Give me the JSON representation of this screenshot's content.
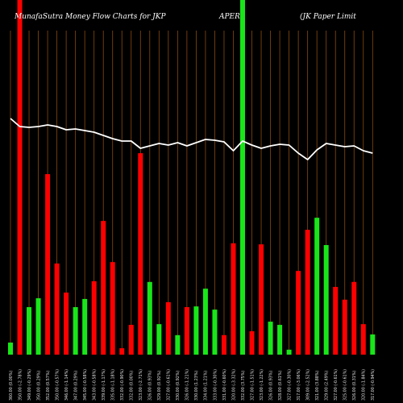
{
  "chart_data": {
    "type": "bar",
    "title_parts": [
      "MunafaSutra  Money Flow  Charts for JKP",
      "APER",
      "(JK Paper Limit"
    ],
    "ylim": [
      0,
      100
    ],
    "money_flow": {
      "values": [
        3.4,
        100,
        13.4,
        15.9,
        50.9,
        25.7,
        17.5,
        13.4,
        15.7,
        20.7,
        37.7,
        26.1,
        1.8,
        8.4,
        56.8,
        20.5,
        8.6,
        14.8,
        5.5,
        13.4,
        13.6,
        18.6,
        12.7,
        5.5,
        31.4,
        100,
        6.6,
        31.1,
        9.3,
        8.4,
        1.4,
        23.6,
        35.2,
        38.6,
        30.9,
        19.1,
        15.5,
        20.5,
        8.6,
        5.7
      ],
      "direction": [
        "up",
        "down",
        "up",
        "up",
        "down",
        "down",
        "down",
        "up",
        "up",
        "down",
        "down",
        "down",
        "down",
        "down",
        "down",
        "up",
        "up",
        "down",
        "up",
        "down",
        "up",
        "up",
        "up",
        "down",
        "down",
        "up",
        "down",
        "down",
        "up",
        "up",
        "up",
        "down",
        "down",
        "up",
        "up",
        "down",
        "down",
        "down",
        "down",
        "up"
      ]
    },
    "price_line": {
      "values": [
        360,
        350,
        349,
        350,
        352,
        350,
        346,
        347,
        345,
        343,
        339,
        335,
        332,
        332,
        323,
        326,
        329,
        327,
        330,
        326,
        330,
        334,
        333,
        331,
        320,
        332,
        327,
        323,
        326,
        328,
        327,
        317,
        309,
        321,
        329,
        327,
        325,
        326,
        320,
        317
      ]
    },
    "x_labels": [
      "360.00 (0.00%)",
      "350.00 (-2.78%)",
      "349.00 (-0.29%)",
      "350.00 (0.29%)",
      "352.00 (0.57%)",
      "350.00 (-0.57%)",
      "346.00 (-1.14%)",
      "347.00 (0.29%)",
      "345.00 (-0.58%)",
      "343.00 (-0.58%)",
      "339.00 (-1.17%)",
      "335.00 (-1.18%)",
      "332.00 (-0.90%)",
      "332.00 (0.00%)",
      "323.00 (-2.71%)",
      "326.00 (0.93%)",
      "329.00 (0.92%)",
      "327.00 (-0.61%)",
      "330.00 (0.92%)",
      "326.00 (-1.21%)",
      "330.00 (1.23%)",
      "334.00 (1.21%)",
      "333.00 (-0.30%)",
      "331.00 (-0.60%)",
      "320.00 (-3.32%)",
      "332.00 (3.75%)",
      "327.00 (-1.51%)",
      "323.00 (-1.22%)",
      "326.00 (0.93%)",
      "328.00 (0.61%)",
      "327.00 (-0.30%)",
      "317.00 (-3.06%)",
      "309.00 (-2.52%)",
      "321.00 (3.88%)",
      "329.00 (2.49%)",
      "327.00 (-0.61%)",
      "325.00 (-0.61%)",
      "326.00 (0.31%)",
      "320.00 (-1.84%)",
      "317.00 (-0.94%)"
    ],
    "grid": true
  },
  "colors": {
    "background": "#000000",
    "up": "#19e619",
    "down": "#ff0000",
    "grid": "#8a4a10",
    "line": "#ffffff",
    "text": "#ffffff"
  }
}
